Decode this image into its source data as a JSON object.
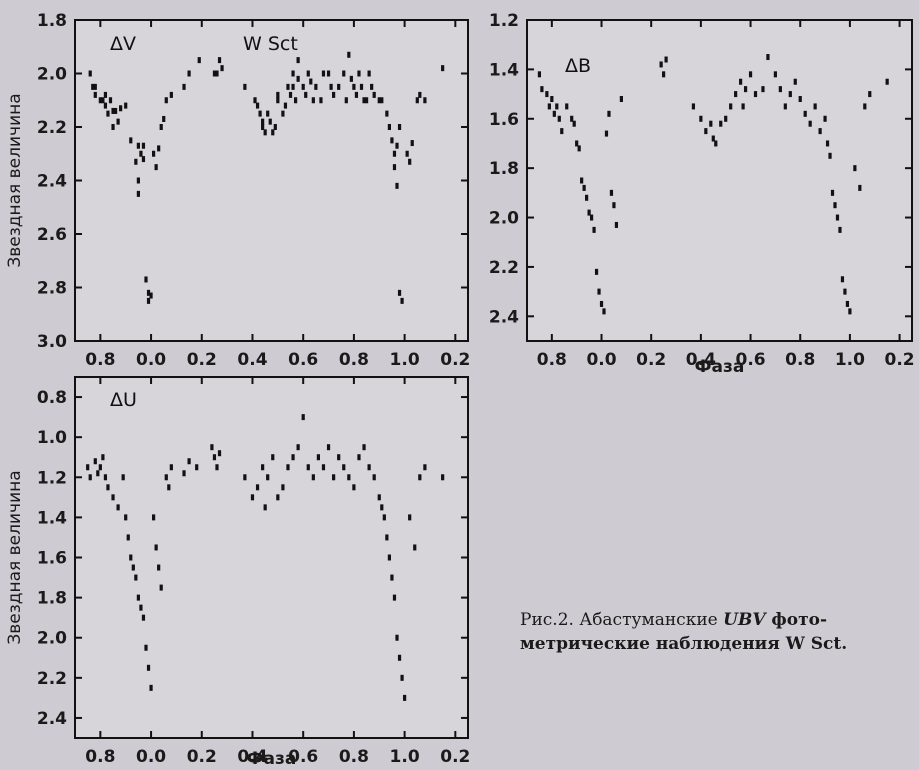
{
  "caption": {
    "line1_prefix": "Рис.2. Абастуманские ",
    "line1_italic": "UBV",
    "line1_suffix": " фото-",
    "line2": "метрические наблюдения W Sct."
  },
  "chart_data": [
    {
      "type": "scatter",
      "panel": "dV",
      "annotations": [
        "ΔV",
        "W Sct"
      ],
      "xlabel": "",
      "ylabel": "Звездная величина",
      "x_ticks": [
        "0.8",
        "0.0",
        "0.2",
        "0.4",
        "0.6",
        "0.8",
        "1.0",
        "0.2"
      ],
      "y_ticks": [
        "1.8",
        "2.0",
        "2.2",
        "2.4",
        "2.6",
        "2.8",
        "3.0"
      ],
      "ylim": [
        1.8,
        3.0
      ],
      "y_inverted": true,
      "x": [
        -0.24,
        -0.23,
        -0.22,
        -0.22,
        -0.2,
        -0.19,
        -0.18,
        -0.18,
        -0.17,
        -0.16,
        -0.15,
        -0.15,
        -0.14,
        -0.13,
        -0.12,
        -0.1,
        -0.08,
        -0.06,
        -0.05,
        -0.05,
        -0.05,
        -0.04,
        -0.03,
        -0.03,
        -0.02,
        -0.01,
        -0.01,
        0.0,
        0.01,
        0.02,
        0.03,
        0.04,
        0.05,
        0.06,
        0.08,
        0.13,
        0.15,
        0.19,
        0.25,
        0.26,
        0.27,
        0.28,
        0.37,
        0.41,
        0.42,
        0.43,
        0.44,
        0.44,
        0.45,
        0.46,
        0.47,
        0.48,
        0.49,
        0.5,
        0.5,
        0.52,
        0.53,
        0.54,
        0.55,
        0.56,
        0.56,
        0.57,
        0.58,
        0.58,
        0.6,
        0.61,
        0.62,
        0.63,
        0.64,
        0.65,
        0.67,
        0.68,
        0.7,
        0.71,
        0.72,
        0.74,
        0.76,
        0.77,
        0.78,
        0.79,
        0.8,
        0.81,
        0.82,
        0.83,
        0.84,
        0.85,
        0.86,
        0.87,
        0.88,
        0.9,
        0.91,
        0.93,
        0.94,
        0.95,
        0.96,
        0.96,
        0.97,
        0.97,
        0.98,
        0.98,
        0.99,
        1.01,
        1.02,
        1.03,
        1.05,
        1.06,
        1.08,
        1.15
      ],
      "y": [
        2.0,
        2.05,
        2.08,
        2.05,
        2.1,
        2.1,
        2.12,
        2.08,
        2.15,
        2.1,
        2.14,
        2.2,
        2.14,
        2.18,
        2.13,
        2.12,
        2.25,
        2.33,
        2.4,
        2.45,
        2.27,
        2.3,
        2.32,
        2.27,
        2.77,
        2.82,
        2.85,
        2.83,
        2.3,
        2.35,
        2.28,
        2.2,
        2.17,
        2.1,
        2.08,
        2.05,
        2.0,
        1.95,
        2.0,
        2.0,
        1.95,
        1.98,
        2.05,
        2.1,
        2.12,
        2.15,
        2.2,
        2.18,
        2.22,
        2.15,
        2.18,
        2.22,
        2.2,
        2.1,
        2.08,
        2.15,
        2.12,
        2.05,
        2.08,
        2.0,
        2.05,
        2.1,
        2.02,
        1.95,
        2.05,
        2.08,
        2.0,
        2.03,
        2.1,
        2.05,
        2.1,
        2.0,
        2.0,
        2.05,
        2.08,
        2.05,
        2.0,
        2.1,
        1.93,
        2.02,
        2.05,
        2.08,
        2.0,
        2.05,
        2.1,
        2.1,
        2.0,
        2.05,
        2.08,
        2.1,
        2.1,
        2.15,
        2.2,
        2.25,
        2.3,
        2.35,
        2.42,
        2.27,
        2.2,
        2.82,
        2.85,
        2.3,
        2.33,
        2.26,
        2.1,
        2.08,
        2.1,
        1.98
      ]
    },
    {
      "type": "scatter",
      "panel": "dB",
      "annotations": [
        "ΔB"
      ],
      "xlabel": "Фаза",
      "ylabel": "",
      "x_ticks": [
        "0.8",
        "0.0",
        "0.2",
        "0.4",
        "0.6",
        "0.8",
        "1.0",
        "0.2"
      ],
      "y_ticks": [
        "1.2",
        "1.4",
        "1.6",
        "1.8",
        "2.0",
        "2.2",
        "2.4"
      ],
      "ylim": [
        1.2,
        2.5
      ],
      "y_inverted": true,
      "x": [
        -0.25,
        -0.24,
        -0.22,
        -0.21,
        -0.2,
        -0.19,
        -0.18,
        -0.17,
        -0.16,
        -0.14,
        -0.12,
        -0.11,
        -0.1,
        -0.09,
        -0.08,
        -0.07,
        -0.06,
        -0.05,
        -0.04,
        -0.03,
        -0.02,
        -0.01,
        0.0,
        0.01,
        0.02,
        0.03,
        0.04,
        0.05,
        0.06,
        0.08,
        0.24,
        0.25,
        0.26,
        0.37,
        0.4,
        0.42,
        0.44,
        0.45,
        0.46,
        0.48,
        0.5,
        0.52,
        0.54,
        0.56,
        0.57,
        0.58,
        0.6,
        0.62,
        0.65,
        0.67,
        0.7,
        0.72,
        0.74,
        0.76,
        0.78,
        0.8,
        0.82,
        0.84,
        0.86,
        0.88,
        0.9,
        0.91,
        0.92,
        0.93,
        0.94,
        0.95,
        0.96,
        0.97,
        0.98,
        0.99,
        1.0,
        1.02,
        1.04,
        1.06,
        1.08,
        1.15
      ],
      "y": [
        1.42,
        1.48,
        1.5,
        1.55,
        1.52,
        1.58,
        1.55,
        1.6,
        1.65,
        1.55,
        1.6,
        1.62,
        1.7,
        1.72,
        1.85,
        1.88,
        1.92,
        1.98,
        2.0,
        2.05,
        2.22,
        2.3,
        2.35,
        2.38,
        1.66,
        1.58,
        1.9,
        1.95,
        2.03,
        1.52,
        1.38,
        1.42,
        1.36,
        1.55,
        1.6,
        1.65,
        1.62,
        1.68,
        1.7,
        1.62,
        1.6,
        1.55,
        1.5,
        1.45,
        1.55,
        1.48,
        1.42,
        1.5,
        1.48,
        1.35,
        1.42,
        1.48,
        1.55,
        1.5,
        1.45,
        1.52,
        1.58,
        1.62,
        1.55,
        1.65,
        1.6,
        1.7,
        1.75,
        1.9,
        1.95,
        2.0,
        2.05,
        2.25,
        2.3,
        2.35,
        2.38,
        1.8,
        1.88,
        1.55,
        1.5,
        1.45
      ]
    },
    {
      "type": "scatter",
      "panel": "dU",
      "annotations": [
        "ΔU"
      ],
      "xlabel": "Фаза",
      "ylabel": "Звездная величина",
      "x_ticks": [
        "0.8",
        "0.0",
        "0.2",
        "0.4",
        "0.6",
        "0.8",
        "1.0",
        "0.2"
      ],
      "y_ticks": [
        "0.8",
        "1.0",
        "1.2",
        "1.4",
        "1.6",
        "1.8",
        "2.0",
        "2.2",
        "2.4"
      ],
      "ylim": [
        0.7,
        2.5
      ],
      "y_inverted": true,
      "x": [
        -0.25,
        -0.24,
        -0.22,
        -0.21,
        -0.2,
        -0.19,
        -0.18,
        -0.17,
        -0.15,
        -0.13,
        -0.11,
        -0.1,
        -0.09,
        -0.08,
        -0.07,
        -0.06,
        -0.05,
        -0.04,
        -0.03,
        -0.02,
        -0.01,
        0.0,
        0.01,
        0.02,
        0.03,
        0.04,
        0.06,
        0.07,
        0.08,
        0.13,
        0.15,
        0.18,
        0.24,
        0.25,
        0.26,
        0.27,
        0.37,
        0.4,
        0.42,
        0.44,
        0.45,
        0.46,
        0.48,
        0.5,
        0.52,
        0.54,
        0.56,
        0.58,
        0.6,
        0.62,
        0.64,
        0.66,
        0.68,
        0.7,
        0.72,
        0.74,
        0.76,
        0.78,
        0.8,
        0.82,
        0.84,
        0.86,
        0.88,
        0.9,
        0.91,
        0.92,
        0.93,
        0.94,
        0.95,
        0.96,
        0.97,
        0.98,
        0.99,
        1.0,
        1.02,
        1.04,
        1.06,
        1.08,
        1.15
      ],
      "y": [
        1.15,
        1.2,
        1.12,
        1.18,
        1.15,
        1.1,
        1.2,
        1.25,
        1.3,
        1.35,
        1.2,
        1.4,
        1.5,
        1.6,
        1.65,
        1.7,
        1.8,
        1.85,
        1.9,
        2.05,
        2.15,
        2.25,
        1.4,
        1.55,
        1.65,
        1.75,
        1.2,
        1.25,
        1.15,
        1.18,
        1.12,
        1.15,
        1.05,
        1.1,
        1.15,
        1.08,
        1.2,
        1.3,
        1.25,
        1.15,
        1.35,
        1.2,
        1.1,
        1.3,
        1.25,
        1.15,
        1.1,
        1.05,
        0.9,
        1.15,
        1.2,
        1.1,
        1.15,
        1.05,
        1.2,
        1.1,
        1.15,
        1.2,
        1.25,
        1.1,
        1.05,
        1.15,
        1.2,
        1.3,
        1.35,
        1.4,
        1.5,
        1.6,
        1.7,
        1.8,
        2.0,
        2.1,
        2.2,
        2.3,
        1.4,
        1.55,
        1.2,
        1.15,
        1.2
      ]
    }
  ]
}
